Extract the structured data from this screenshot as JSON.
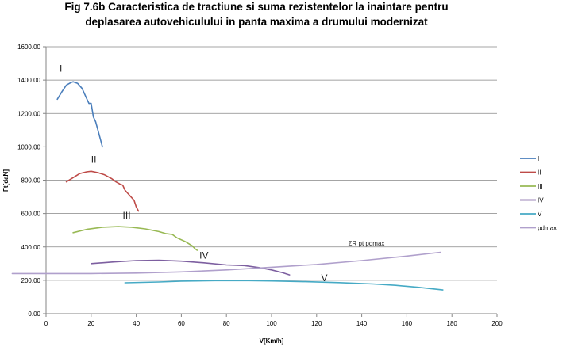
{
  "chart_data": {
    "type": "line",
    "title": "Fig 7.6b Caracteristica de tractiune si suma rezistentelor la inaintare pentru deplasarea autovehiculului in panta maxima a drumului modernizat",
    "title_lines": [
      "Fig 7.6b Caracteristica de tractiune si suma rezistentelor la inaintare pentru",
      "deplasarea autovehiculului in panta maxima a drumului modernizat"
    ],
    "xlabel": "V[Km/h]",
    "ylabel": "Ft[daN]",
    "xlim": [
      0,
      200
    ],
    "ylim": [
      0,
      1600
    ],
    "xticks": [
      "0",
      "20",
      "40",
      "60",
      "80",
      "100",
      "120",
      "140",
      "160",
      "180",
      "200"
    ],
    "yticks": [
      "0.00",
      "200.00",
      "400.00",
      "600.00",
      "800.00",
      "1000.00",
      "1200.00",
      "1400.00",
      "1600.00"
    ],
    "grid": "horizontal",
    "legend_position": "right",
    "series": [
      {
        "name": "I",
        "color": "#4a7ebb",
        "label_text": "I",
        "label_at": [
          6,
          1450
        ],
        "points": [
          [
            5,
            1285
          ],
          [
            7,
            1330
          ],
          [
            9,
            1370
          ],
          [
            11,
            1385
          ],
          [
            12,
            1390
          ],
          [
            14,
            1380
          ],
          [
            16,
            1350
          ],
          [
            18,
            1290
          ],
          [
            19,
            1260
          ],
          [
            20,
            1260
          ],
          [
            21,
            1180
          ],
          [
            22,
            1150
          ],
          [
            24,
            1050
          ],
          [
            25,
            1000
          ]
        ]
      },
      {
        "name": "II",
        "color": "#be4b48",
        "label_text": "II",
        "label_at": [
          20,
          905
        ],
        "points": [
          [
            9,
            790
          ],
          [
            12,
            815
          ],
          [
            15,
            840
          ],
          [
            18,
            850
          ],
          [
            20,
            853
          ],
          [
            23,
            845
          ],
          [
            26,
            832
          ],
          [
            29,
            810
          ],
          [
            31,
            790
          ],
          [
            33,
            775
          ],
          [
            34,
            770
          ],
          [
            35,
            740
          ],
          [
            37,
            710
          ],
          [
            39,
            680
          ],
          [
            40,
            640
          ],
          [
            41,
            615
          ]
        ]
      },
      {
        "name": "III",
        "color": "#98b954",
        "label_text": "III",
        "label_at": [
          34,
          570
        ],
        "points": [
          [
            12,
            485
          ],
          [
            18,
            505
          ],
          [
            25,
            518
          ],
          [
            32,
            522
          ],
          [
            38,
            518
          ],
          [
            44,
            508
          ],
          [
            50,
            492
          ],
          [
            53,
            480
          ],
          [
            56,
            475
          ],
          [
            58,
            455
          ],
          [
            62,
            430
          ],
          [
            65,
            405
          ],
          [
            66,
            390
          ],
          [
            67,
            380
          ]
        ]
      },
      {
        "name": "IV",
        "color": "#7d5fa0",
        "label_text": "IV",
        "label_at": [
          68,
          330
        ],
        "points": [
          [
            20,
            300
          ],
          [
            30,
            310
          ],
          [
            40,
            318
          ],
          [
            50,
            320
          ],
          [
            60,
            315
          ],
          [
            70,
            305
          ],
          [
            80,
            292
          ],
          [
            88,
            288
          ],
          [
            95,
            275
          ],
          [
            100,
            262
          ],
          [
            105,
            245
          ],
          [
            108,
            232
          ]
        ]
      },
      {
        "name": "V",
        "color": "#46aac5",
        "label_text": "V",
        "label_at": [
          122,
          195
        ],
        "points": [
          [
            35,
            185
          ],
          [
            50,
            190
          ],
          [
            60,
            195
          ],
          [
            75,
            198
          ],
          [
            90,
            198
          ],
          [
            100,
            196
          ],
          [
            115,
            192
          ],
          [
            130,
            186
          ],
          [
            145,
            178
          ],
          [
            155,
            170
          ],
          [
            165,
            158
          ],
          [
            176,
            142
          ]
        ]
      },
      {
        "name": "pdmax",
        "color": "#b0a0cc",
        "label_text": "ΣR pt pdmax",
        "label_at": [
          134,
          408
        ],
        "points": [
          [
            -15,
            240
          ],
          [
            0,
            240
          ],
          [
            20,
            240
          ],
          [
            40,
            243
          ],
          [
            60,
            250
          ],
          [
            80,
            262
          ],
          [
            100,
            278
          ],
          [
            120,
            295
          ],
          [
            140,
            318
          ],
          [
            160,
            345
          ],
          [
            175,
            368
          ]
        ]
      }
    ]
  }
}
